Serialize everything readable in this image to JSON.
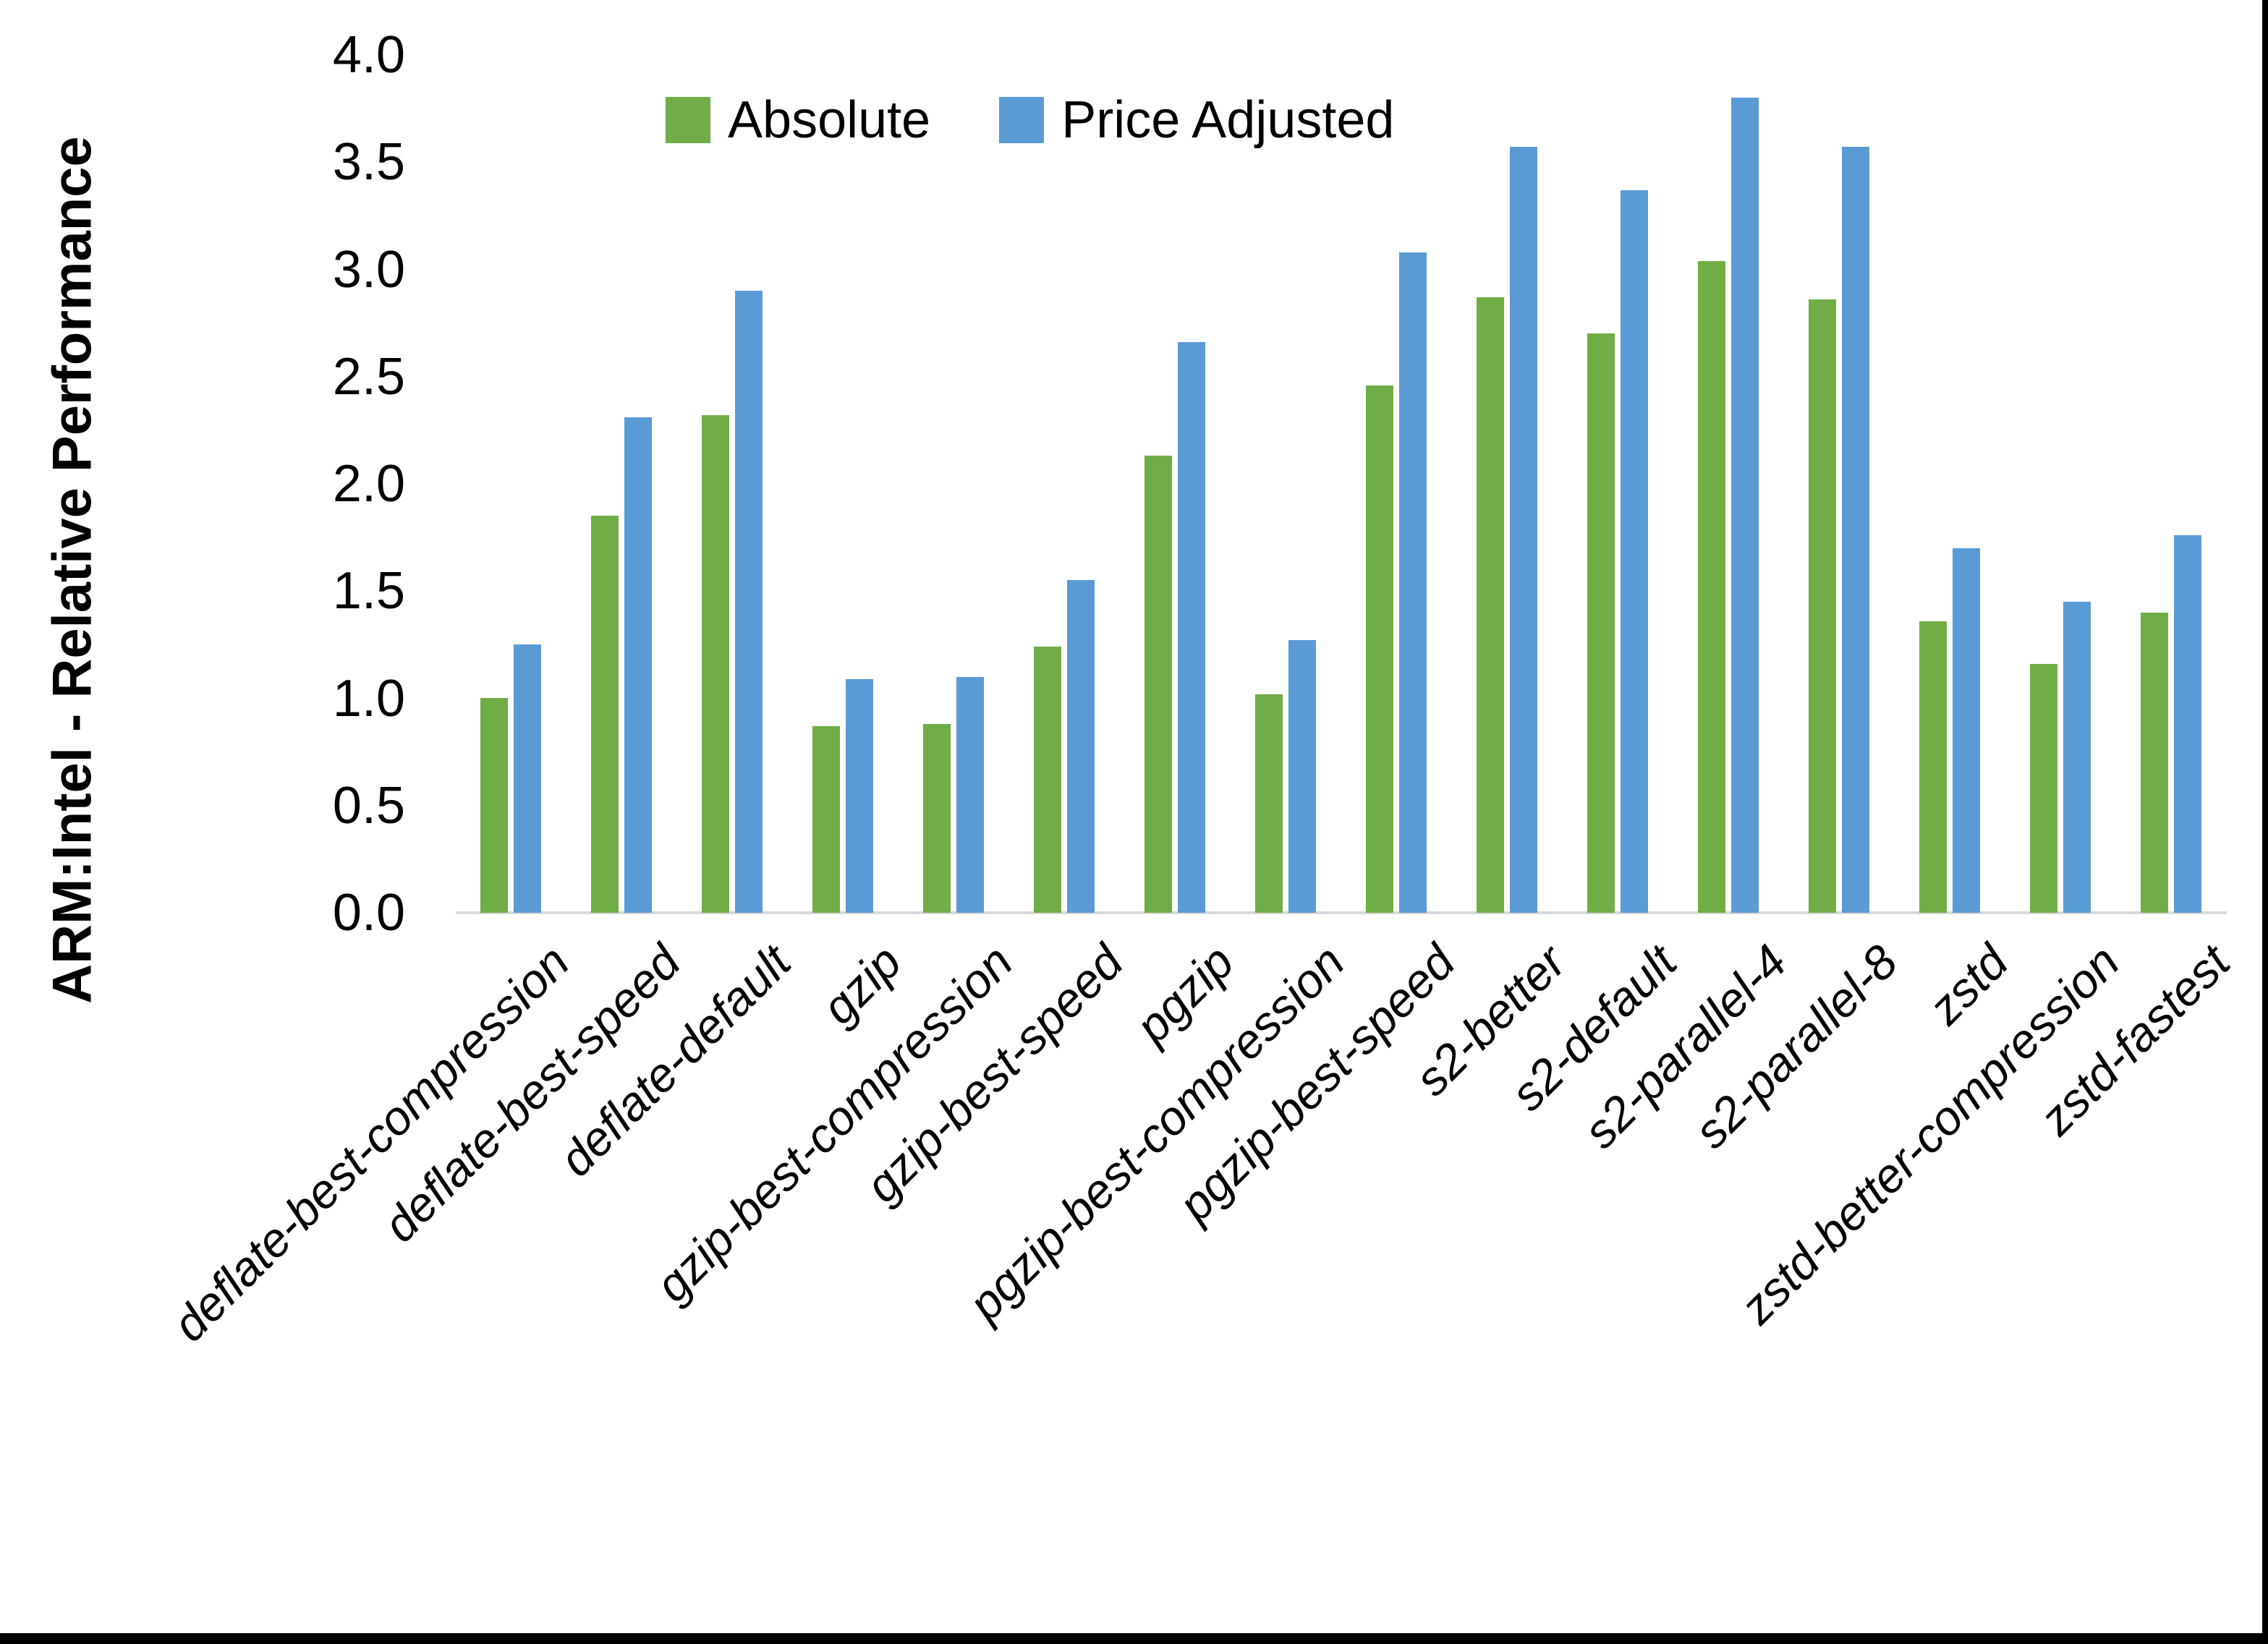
{
  "chart_data": {
    "type": "bar",
    "title": "",
    "xlabel": "",
    "ylabel": "ARM:Intel - Relative Performance",
    "ylim": [
      0.0,
      4.0
    ],
    "ytick_step": 0.5,
    "ytick_labels": [
      "4.0",
      "3.5",
      "3.0",
      "2.5",
      "2.0",
      "1.5",
      "1.0",
      "0.5",
      "0.0"
    ],
    "grid": false,
    "legend_position": "top-center",
    "categories": [
      "deflate-best-compression",
      "deflate-best-speed",
      "deflate-default",
      "gzip",
      "gzip-best-compression",
      "gzip-best-speed",
      "pgzip",
      "pgzip-best-compression",
      "pgzip-best-speed",
      "s2-better",
      "s2-default",
      "s2-parallel-4",
      "s2-parallel-8",
      "zstd",
      "zstd-better-compression",
      "zstd-fastest"
    ],
    "series": [
      {
        "name": "Absolute",
        "color": "#70AD47",
        "values": [
          1.0,
          1.85,
          2.32,
          0.87,
          0.88,
          1.24,
          2.13,
          1.02,
          2.46,
          2.87,
          2.7,
          3.04,
          2.86,
          1.36,
          1.16,
          1.4
        ]
      },
      {
        "name": "Price Adjusted",
        "color": "#5B9BD5",
        "values": [
          1.25,
          2.31,
          2.9,
          1.09,
          1.1,
          1.55,
          2.66,
          1.27,
          3.08,
          3.57,
          3.37,
          3.8,
          3.57,
          1.7,
          1.45,
          1.76
        ]
      }
    ]
  },
  "colors": {
    "background": "#ffffff",
    "axis_line": "#d9d9d9",
    "text": "#000000",
    "frame_border": "#000000"
  }
}
